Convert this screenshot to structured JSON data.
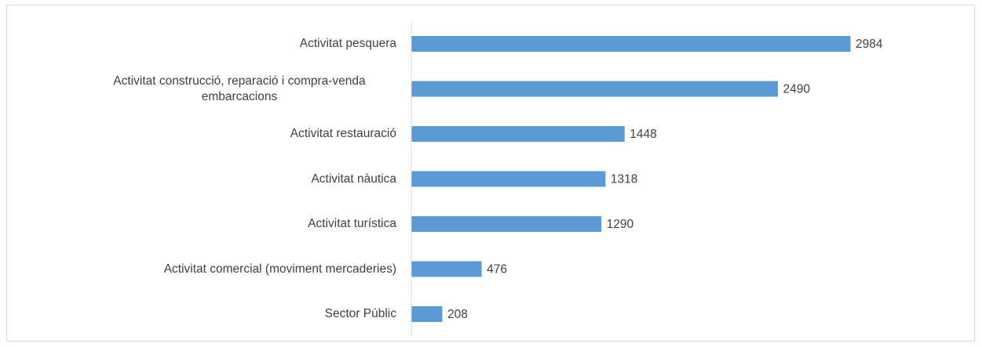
{
  "chart_data": {
    "type": "bar",
    "orientation": "horizontal",
    "categories": [
      "Activitat pesquera",
      "Activitat construcció, reparació i compra-venda embarcacions",
      "Activitat restauració",
      "Activitat nàutica",
      "Activitat turística",
      "Activitat comercial (moviment mercaderies)",
      "Sector Públic"
    ],
    "values": [
      2984,
      2490,
      1448,
      1318,
      1290,
      476,
      208
    ],
    "color": "#5b9bd5"
  }
}
